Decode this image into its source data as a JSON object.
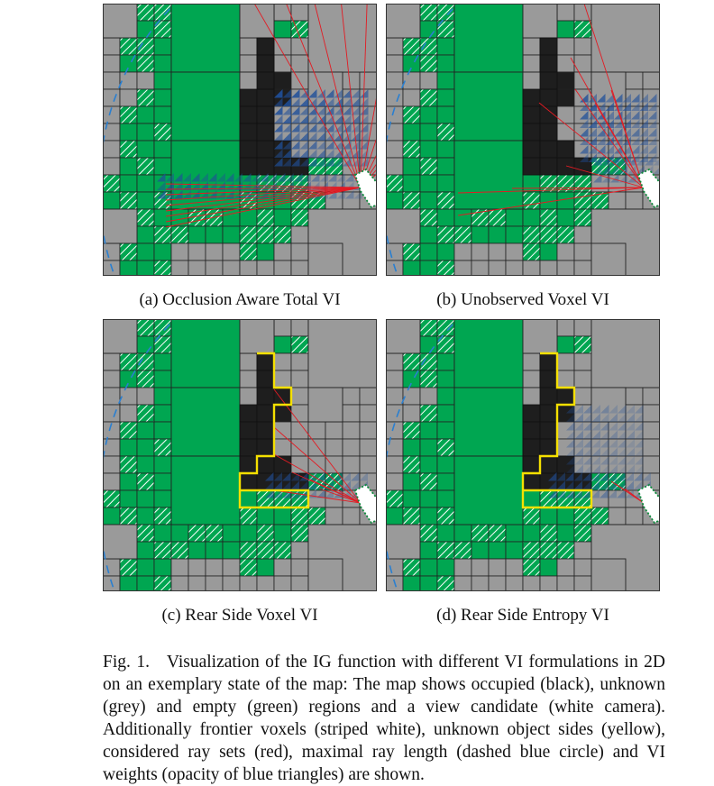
{
  "panels": [
    {
      "id": "a",
      "caption": "(a) Occlusion Aware Total VI",
      "variant": "total"
    },
    {
      "id": "b",
      "caption": "(b) Unobserved Voxel VI",
      "variant": "unobserved"
    },
    {
      "id": "c",
      "caption": "(c) Rear Side Voxel VI",
      "variant": "rearvoxel"
    },
    {
      "id": "d",
      "caption": "(d) Rear Side Entropy VI",
      "variant": "rearentropy"
    }
  ],
  "figure_caption": {
    "label": "Fig. 1.",
    "text": "Visualization of the IG function with different VI formulations in 2D on an exemplary state of the map: The map shows occupied (black), unknown (grey) and empty (green) regions and a view candidate (white camera). Additionally frontier voxels (striped white), unknown object sides (yellow), considered ray sets (red), maximal ray length (dashed blue circle) and VI weights (opacity of blue triangles) are shown."
  },
  "colors": {
    "occupied": "#1e1e1e",
    "unknown": "#9a9a9a",
    "empty": "#00a651",
    "frontier_stripe": "#ffffff",
    "object_side": "#f5e000",
    "ray": "#e31b23",
    "max_range": "#2a7fd0",
    "vi_weight": "#1f4f9a"
  }
}
